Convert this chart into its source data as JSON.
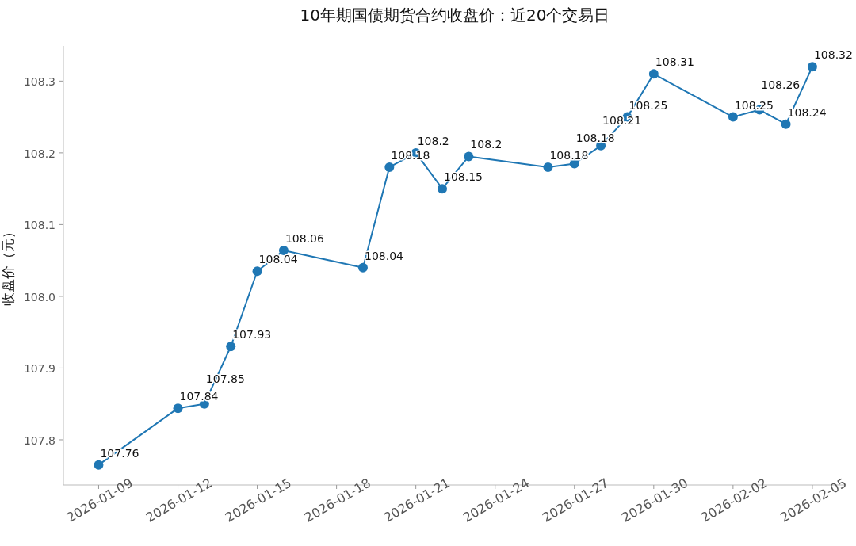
{
  "chart_data": {
    "type": "line",
    "title": "10年期国债期货合约收盘价：近20个交易日",
    "ylabel": "收盘价（元）",
    "x": [
      "2026-01-09",
      "2026-01-12",
      "2026-01-13",
      "2026-01-14",
      "2026-01-15",
      "2026-01-16",
      "2026-01-19",
      "2026-01-20",
      "2026-01-21",
      "2026-01-22",
      "2026-01-23",
      "2026-01-26",
      "2026-01-27",
      "2026-01-28",
      "2026-01-29",
      "2026-01-30",
      "2026-02-02",
      "2026-02-03",
      "2026-02-04",
      "2026-02-05"
    ],
    "series": [
      {
        "color": "#1f77b4",
        "values": [
          107.765,
          107.844,
          107.85,
          107.93,
          108.035,
          108.064,
          108.04,
          108.18,
          108.2,
          108.15,
          108.195,
          108.18,
          108.185,
          108.21,
          108.25,
          108.31,
          108.25,
          108.26,
          108.24,
          108.32
        ],
        "value_labels": [
          "107.76",
          "107.84",
          "107.85",
          "107.93",
          "108.04",
          "108.06",
          "108.04",
          "108.18",
          "108.2",
          "108.15",
          "108.2",
          "108.18",
          "108.18",
          "108.21",
          "108.25",
          "108.31",
          "108.25",
          "108.26",
          "108.24",
          "108.32"
        ]
      }
    ],
    "xlim": [
      "2026-01-07T16:00",
      "2026-02-06T07:00"
    ],
    "xticks": [
      "2026-01-09",
      "2026-01-12",
      "2026-01-15",
      "2026-01-18",
      "2026-01-21",
      "2026-01-24",
      "2026-01-27",
      "2026-01-30",
      "2026-02-02",
      "2026-02-05"
    ],
    "ylim": [
      107.737,
      108.349
    ],
    "yticks": [
      107.8,
      107.9,
      {
        "value": 108.0,
        "label": "108.0"
      },
      108.1,
      108.2,
      108.3
    ],
    "grid": false,
    "marker": "circle",
    "line_style": "solid"
  }
}
